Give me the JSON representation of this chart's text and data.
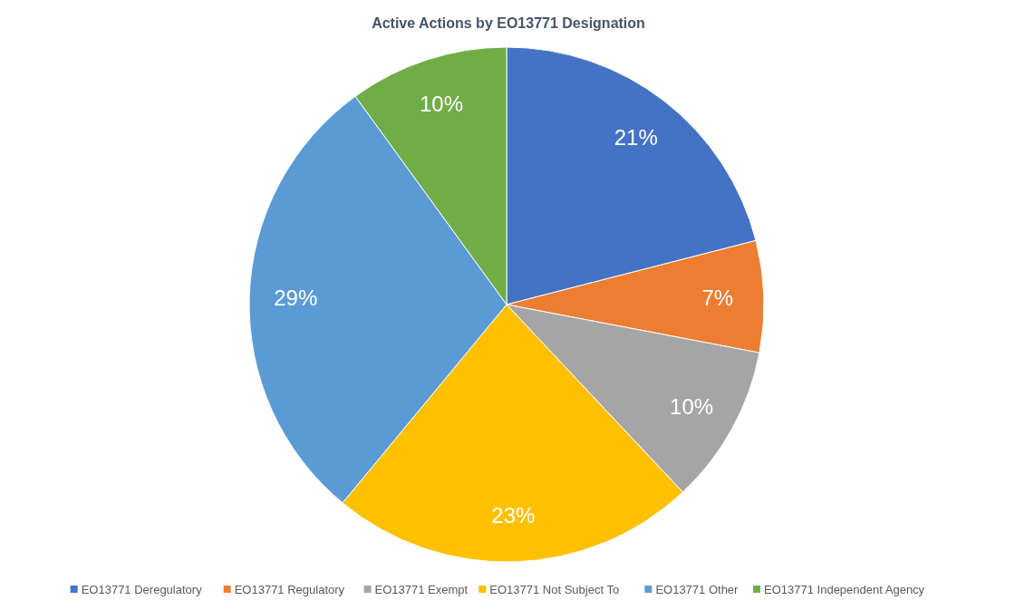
{
  "chart_data": {
    "type": "pie",
    "title": "Active Actions by EO13771 Designation",
    "categories": [
      "EO13771 Deregulatory",
      "EO13771 Regulatory",
      "EO13771 Exempt",
      "EO13771 Not Subject To",
      "EO13771 Other",
      "EO13771 Independent Agency"
    ],
    "values": [
      21,
      7,
      10,
      23,
      29,
      10
    ],
    "colors": [
      "#4472c4",
      "#ed7d31",
      "#a5a5a5",
      "#ffc000",
      "#5b9bd5",
      "#70ad47"
    ],
    "value_labels": [
      "21%",
      "7%",
      "10%",
      "23%",
      "29%",
      "10%"
    ],
    "legend": "bottom"
  }
}
